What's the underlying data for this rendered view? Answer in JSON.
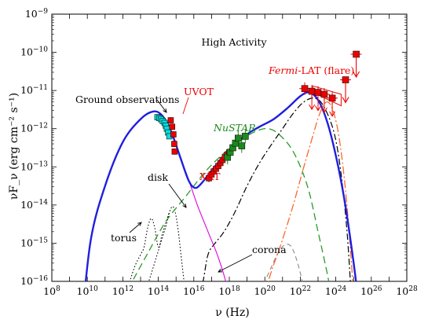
{
  "chart_data": {
    "type": "scatter",
    "title": "High Activity",
    "xlabel": "ν (Hz)",
    "ylabel": "νF_ν (erg cm⁻² s⁻¹)",
    "x_scale": "log",
    "y_scale": "log",
    "xlim": [
      100000000.0,
      1e+28
    ],
    "ylim": [
      1e-16,
      1e-09
    ],
    "x_tick_labels": [
      {
        "base": "10",
        "exp": "8"
      },
      {
        "base": "10",
        "exp": "10"
      },
      {
        "base": "10",
        "exp": "12"
      },
      {
        "base": "10",
        "exp": "14"
      },
      {
        "base": "10",
        "exp": "16"
      },
      {
        "base": "10",
        "exp": "18"
      },
      {
        "base": "10",
        "exp": "20"
      },
      {
        "base": "10",
        "exp": "22"
      },
      {
        "base": "10",
        "exp": "24"
      },
      {
        "base": "10",
        "exp": "26"
      },
      {
        "base": "10",
        "exp": "28"
      }
    ],
    "y_tick_labels": [
      {
        "base": "10",
        "exp": "−16"
      },
      {
        "base": "10",
        "exp": "−15"
      },
      {
        "base": "10",
        "exp": "−14"
      },
      {
        "base": "10",
        "exp": "−13"
      },
      {
        "base": "10",
        "exp": "−12"
      },
      {
        "base": "10",
        "exp": "−11"
      },
      {
        "base": "10",
        "exp": "−10"
      },
      {
        "base": "10",
        "exp": "−9"
      }
    ],
    "annotations": {
      "ground": "Ground observations",
      "uvot": "UVOT",
      "nustar": "NuSTAR",
      "xrt": "XRT",
      "disk": "disk",
      "torus": "torus",
      "corona": "corona",
      "fermi_italic": "Fermi",
      "fermi_rest": "-LAT (flare)"
    },
    "colors": {
      "total_model": "#1f1fe0",
      "ground": "#00e0e0",
      "uvot_xrt_fermi": "#ee0000",
      "nustar": "#1a8a1a",
      "synchrotron": "#e000e0",
      "ssc": "#2a9a2a",
      "ec": "#ff5a1a",
      "ec_corona": "#888888"
    },
    "series": {
      "ground": [
        [
          13.95,
          -11.7
        ],
        [
          14.05,
          -11.72
        ],
        [
          14.15,
          -11.75
        ],
        [
          14.25,
          -11.8
        ],
        [
          14.35,
          -11.85
        ],
        [
          14.42,
          -11.92
        ],
        [
          14.48,
          -12.0
        ],
        [
          14.55,
          -12.1
        ],
        [
          14.62,
          -12.2
        ]
      ],
      "uvot": [
        [
          14.7,
          -11.78
        ],
        [
          14.78,
          -11.95
        ],
        [
          14.85,
          -12.15
        ],
        [
          14.9,
          -12.4
        ],
        [
          14.92,
          -12.6
        ]
      ],
      "xrt": [
        [
          16.85,
          -13.3
        ],
        [
          17.0,
          -13.2
        ],
        [
          17.12,
          -13.12
        ],
        [
          17.25,
          -13.05
        ],
        [
          17.38,
          -12.98
        ],
        [
          17.5,
          -12.9
        ],
        [
          17.62,
          -12.82
        ],
        [
          17.75,
          -12.75
        ],
        [
          17.88,
          -12.68
        ],
        [
          18.0,
          -12.62
        ]
      ],
      "nustar": [
        [
          17.9,
          -12.75
        ],
        [
          18.05,
          -12.62
        ],
        [
          18.2,
          -12.5
        ],
        [
          18.35,
          -12.38
        ],
        [
          18.5,
          -12.25
        ],
        [
          18.7,
          -12.45
        ],
        [
          18.9,
          -12.2
        ]
      ],
      "fermi": [
        [
          22.25,
          -10.95
        ],
        [
          22.65,
          -11.02
        ],
        [
          23.0,
          -11.05
        ],
        [
          23.35,
          -11.1
        ],
        [
          23.8,
          -11.2
        ]
      ],
      "fermi_upper_limits": [
        [
          24.55,
          -10.72
        ],
        [
          25.15,
          -10.05
        ]
      ],
      "total_model": [
        [
          9.7,
          -17
        ],
        [
          10.2,
          -14.9
        ],
        [
          11.0,
          -13.5
        ],
        [
          12.0,
          -12.35
        ],
        [
          13.0,
          -11.75
        ],
        [
          13.7,
          -11.55
        ],
        [
          14.2,
          -11.65
        ],
        [
          14.7,
          -12.05
        ],
        [
          15.2,
          -12.7
        ],
        [
          15.7,
          -13.35
        ],
        [
          16.05,
          -13.55
        ],
        [
          16.4,
          -13.45
        ],
        [
          17.0,
          -13.1
        ],
        [
          18.0,
          -12.55
        ],
        [
          19.0,
          -12.15
        ],
        [
          19.7,
          -11.95
        ],
        [
          20.5,
          -11.75
        ],
        [
          21.3,
          -11.45
        ],
        [
          22.0,
          -11.15
        ],
        [
          22.5,
          -11.05
        ],
        [
          23.0,
          -11.25
        ],
        [
          23.5,
          -11.8
        ],
        [
          24.0,
          -12.7
        ],
        [
          24.5,
          -13.9
        ],
        [
          25.0,
          -15.5
        ],
        [
          25.4,
          -17
        ]
      ],
      "synchrotron": [
        [
          15.1,
          -12.6
        ],
        [
          15.6,
          -13.2
        ],
        [
          16.2,
          -14.0
        ],
        [
          16.8,
          -14.7
        ],
        [
          17.4,
          -15.4
        ],
        [
          17.9,
          -16.2
        ],
        [
          18.1,
          -17
        ]
      ],
      "ssc": [
        [
          12.3,
          -16.2
        ],
        [
          13.3,
          -15.35
        ],
        [
          14.4,
          -14.45
        ],
        [
          15.5,
          -13.8
        ],
        [
          16.7,
          -13.1
        ],
        [
          17.8,
          -12.6
        ],
        [
          18.8,
          -12.25
        ],
        [
          19.6,
          -12.05
        ],
        [
          20.2,
          -12.0
        ],
        [
          20.8,
          -12.15
        ],
        [
          21.6,
          -12.6
        ],
        [
          22.4,
          -13.5
        ],
        [
          23.0,
          -14.7
        ],
        [
          23.6,
          -16.0
        ],
        [
          23.9,
          -17
        ]
      ],
      "ec_disk": [
        [
          16.0,
          -17
        ],
        [
          16.5,
          -16.05
        ],
        [
          16.8,
          -15.3
        ],
        [
          17.2,
          -15.0
        ],
        [
          17.7,
          -14.7
        ],
        [
          18.3,
          -14.2
        ],
        [
          19.0,
          -13.5
        ],
        [
          19.7,
          -12.9
        ],
        [
          20.4,
          -12.4
        ],
        [
          21.0,
          -12.0
        ],
        [
          21.6,
          -11.6
        ],
        [
          22.2,
          -11.3
        ],
        [
          22.8,
          -11.2
        ],
        [
          23.3,
          -11.4
        ],
        [
          23.9,
          -12.1
        ],
        [
          24.3,
          -13.2
        ],
        [
          24.65,
          -14.8
        ],
        [
          24.95,
          -17
        ]
      ],
      "ec_torus": [
        [
          19.6,
          -17
        ],
        [
          20.0,
          -16.3
        ],
        [
          20.4,
          -15.7
        ],
        [
          21.0,
          -14.9
        ],
        [
          21.6,
          -14.0
        ],
        [
          22.2,
          -13.0
        ],
        [
          22.7,
          -12.2
        ],
        [
          23.1,
          -11.6
        ],
        [
          23.5,
          -11.3
        ],
        [
          23.9,
          -11.6
        ],
        [
          24.3,
          -12.6
        ],
        [
          24.7,
          -14.4
        ],
        [
          25.1,
          -17
        ]
      ],
      "ec_corona": [
        [
          19.0,
          -17
        ],
        [
          19.6,
          -16.4
        ],
        [
          20.2,
          -15.8
        ],
        [
          20.7,
          -15.3
        ],
        [
          21.1,
          -15.05
        ],
        [
          21.5,
          -15.1
        ],
        [
          21.9,
          -15.6
        ],
        [
          22.3,
          -16.4
        ],
        [
          22.6,
          -17
        ]
      ],
      "disk_bb": [
        [
          12.8,
          -17
        ],
        [
          13.2,
          -16.4
        ],
        [
          13.6,
          -15.8
        ],
        [
          14.0,
          -15.2
        ],
        [
          14.4,
          -14.6
        ],
        [
          14.7,
          -14.1
        ],
        [
          14.9,
          -14.1
        ],
        [
          15.1,
          -14.6
        ],
        [
          15.35,
          -15.6
        ],
        [
          15.6,
          -16.6
        ],
        [
          15.7,
          -16.8
        ],
        [
          16.0,
          -16.85
        ],
        [
          17.0,
          -16.85
        ],
        [
          18.0,
          -16.85
        ],
        [
          18.5,
          -16.9
        ],
        [
          19.0,
          -17
        ]
      ],
      "torus_bb": [
        [
          11.5,
          -17
        ],
        [
          12.0,
          -16.6
        ],
        [
          12.6,
          -15.7
        ],
        [
          13.0,
          -15.3
        ],
        [
          13.2,
          -15.1
        ],
        [
          13.4,
          -14.6
        ],
        [
          13.6,
          -14.35
        ],
        [
          13.8,
          -14.6
        ],
        [
          14.0,
          -15.1
        ],
        [
          14.2,
          -14.8
        ],
        [
          14.4,
          -14.5
        ],
        [
          14.6,
          -14.2
        ]
      ]
    }
  }
}
